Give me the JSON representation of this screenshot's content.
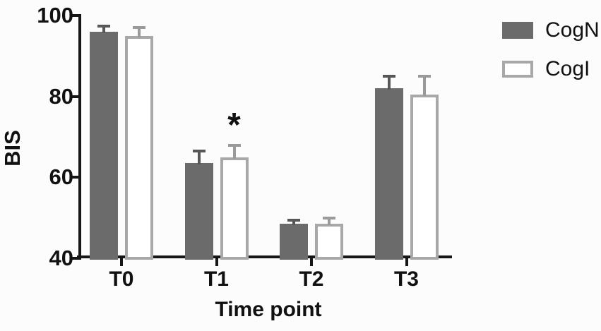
{
  "figure": {
    "background": "#fcfcfc",
    "axis_color": "#161616",
    "text_color": "#111111"
  },
  "chart_data": {
    "type": "bar",
    "title": "",
    "xlabel": "Time point",
    "ylabel": "BIS",
    "categories": [
      "T0",
      "T1",
      "T2",
      "T3"
    ],
    "series": [
      {
        "name": "CogN",
        "values": [
          96,
          63.5,
          48.5,
          82
        ],
        "errors": [
          1.5,
          3,
          1,
          3
        ],
        "fill": "#6b6b6b",
        "border": "#6b6b6b",
        "error_color": "#575757"
      },
      {
        "name": "CogI",
        "values": [
          95,
          65,
          48.5,
          80.5
        ],
        "errors": [
          2,
          3,
          1.5,
          4.5
        ],
        "fill": "#ffffff",
        "border": "#a8a8a8",
        "error_color": "#9a9a9a"
      }
    ],
    "ylim": [
      40,
      100
    ],
    "yticks": [
      40,
      60,
      80,
      100
    ],
    "grid": false,
    "error_bars": "upper",
    "legend_position": "top-right",
    "annotations": [
      {
        "text": "*",
        "category": "T1",
        "series": "CogI"
      }
    ]
  }
}
